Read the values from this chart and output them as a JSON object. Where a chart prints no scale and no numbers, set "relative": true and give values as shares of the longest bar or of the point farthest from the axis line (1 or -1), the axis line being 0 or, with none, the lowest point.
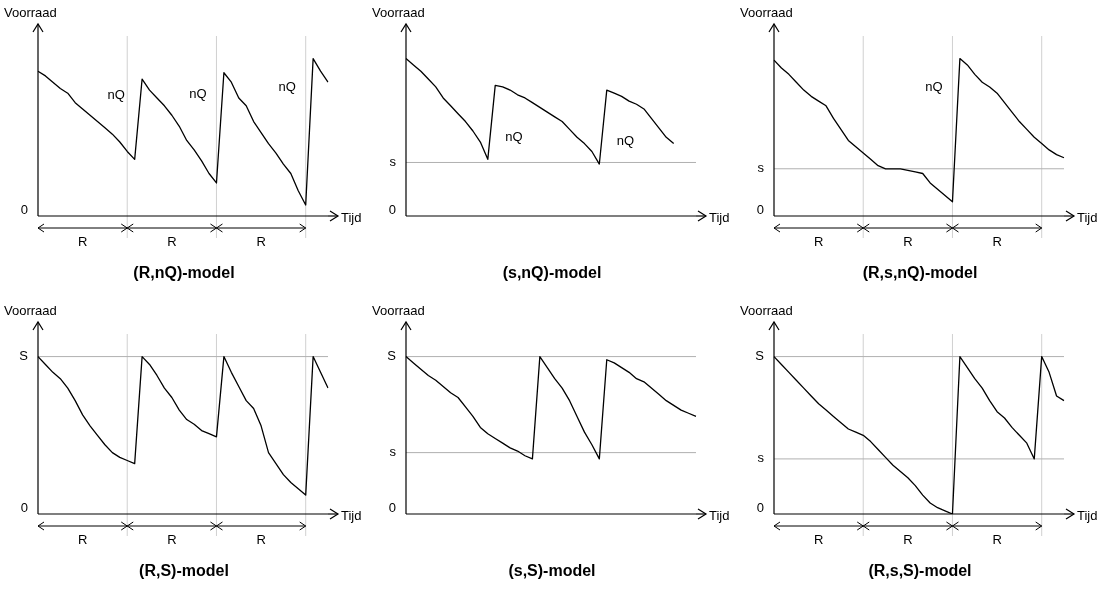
{
  "chart_data": [
    {
      "type": "line",
      "title": "(R,nQ)-model",
      "ylabel": "Voorraad",
      "xlabel": "Tijd",
      "relative": true,
      "marker": "none",
      "line_style": "solid",
      "grid": "x",
      "categories": [
        null,
        null,
        null,
        null,
        null,
        null,
        null,
        null,
        null,
        null,
        null,
        null,
        null,
        null,
        null,
        null,
        null,
        null,
        null,
        null,
        null,
        null,
        null,
        null,
        null,
        null,
        null,
        null,
        null,
        null,
        null,
        null,
        null,
        null,
        null,
        null,
        null,
        null,
        null,
        null
      ],
      "series": [
        {
          "color": "#000000",
          "values": [
            0.92,
            0.89,
            0.85,
            0.81,
            0.78,
            0.72,
            0.68,
            0.64,
            0.6,
            0.56,
            0.52,
            0.47,
            0.41,
            0.36,
            0.87,
            0.8,
            0.75,
            0.7,
            0.64,
            0.57,
            0.48,
            0.42,
            0.35,
            0.27,
            0.21,
            0.91,
            0.85,
            0.75,
            0.7,
            0.6,
            0.53,
            0.46,
            0.4,
            0.33,
            0.27,
            0.16,
            0.07,
            1.0,
            0.92,
            0.85
          ]
        }
      ],
      "ref_lines": [
        {
          "axis": "y",
          "value": 0,
          "label": "0",
          "color": "#000000"
        }
      ],
      "annotations": [
        "nQ",
        "nQ",
        "nQ",
        "R",
        "R",
        "R"
      ]
    },
    {
      "type": "line",
      "title": "(s,nQ)-model",
      "ylabel": "Voorraad",
      "xlabel": "Tijd",
      "relative": true,
      "marker": "none",
      "line_style": "solid",
      "categories": [
        null,
        null,
        null,
        null,
        null,
        null,
        null,
        null,
        null,
        null,
        null,
        null,
        null,
        null,
        null,
        null,
        null,
        null,
        null,
        null,
        null,
        null,
        null,
        null,
        null,
        null,
        null,
        null,
        null,
        null,
        null,
        null,
        null,
        null,
        null,
        null,
        null,
        null,
        null,
        null
      ],
      "series": [
        {
          "color": "#000000",
          "values": [
            1.0,
            0.96,
            0.92,
            0.87,
            0.82,
            0.75,
            0.7,
            0.65,
            0.6,
            0.54,
            0.47,
            0.36,
            0.83,
            0.82,
            0.8,
            0.77,
            0.75,
            0.72,
            0.69,
            0.66,
            0.63,
            0.6,
            0.55,
            0.5,
            0.46,
            0.41,
            0.33,
            0.8,
            0.78,
            0.76,
            0.73,
            0.71,
            0.68,
            0.62,
            0.56,
            0.5,
            0.46,
            null,
            null,
            null
          ]
        }
      ],
      "ref_lines": [
        {
          "axis": "y",
          "value": 0,
          "label": "0",
          "color": "#000000"
        },
        {
          "axis": "y",
          "value": 0.34,
          "label": "s",
          "color": "#b0b0b0"
        }
      ],
      "annotations": [
        "nQ",
        "nQ"
      ]
    },
    {
      "type": "line",
      "title": "(R,s,nQ)-model",
      "ylabel": "Voorraad",
      "xlabel": "Tijd",
      "relative": true,
      "marker": "none",
      "line_style": "solid",
      "grid": "x",
      "categories": [
        null,
        null,
        null,
        null,
        null,
        null,
        null,
        null,
        null,
        null,
        null,
        null,
        null,
        null,
        null,
        null,
        null,
        null,
        null,
        null,
        null,
        null,
        null,
        null,
        null,
        null,
        null,
        null,
        null,
        null,
        null,
        null,
        null,
        null,
        null,
        null,
        null,
        null,
        null,
        null
      ],
      "series": [
        {
          "color": "#000000",
          "values": [
            0.99,
            0.94,
            0.9,
            0.85,
            0.8,
            0.76,
            0.73,
            0.7,
            0.62,
            0.55,
            0.48,
            0.44,
            0.4,
            0.36,
            0.32,
            0.3,
            0.3,
            0.3,
            0.29,
            0.28,
            0.27,
            0.21,
            0.17,
            0.13,
            0.09,
            1.0,
            0.96,
            0.9,
            0.85,
            0.82,
            0.78,
            0.72,
            0.66,
            0.6,
            0.55,
            0.5,
            0.46,
            0.42,
            0.39,
            0.37
          ]
        }
      ],
      "ref_lines": [
        {
          "axis": "y",
          "value": 0,
          "label": "0",
          "color": "#000000"
        },
        {
          "axis": "y",
          "value": 0.3,
          "label": "s",
          "color": "#b0b0b0"
        }
      ],
      "annotations": [
        "nQ",
        "R",
        "R",
        "R"
      ]
    },
    {
      "type": "line",
      "title": "(R,S)-model",
      "ylabel": "Voorraad",
      "xlabel": "Tijd",
      "relative": true,
      "marker": "none",
      "line_style": "solid",
      "grid": "x",
      "categories": [
        null,
        null,
        null,
        null,
        null,
        null,
        null,
        null,
        null,
        null,
        null,
        null,
        null,
        null,
        null,
        null,
        null,
        null,
        null,
        null,
        null,
        null,
        null,
        null,
        null,
        null,
        null,
        null,
        null,
        null,
        null,
        null,
        null,
        null,
        null,
        null,
        null,
        null,
        null,
        null
      ],
      "series": [
        {
          "color": "#000000",
          "values": [
            1.0,
            0.95,
            0.9,
            0.86,
            0.8,
            0.72,
            0.63,
            0.56,
            0.5,
            0.44,
            0.39,
            0.36,
            0.34,
            0.32,
            1.0,
            0.95,
            0.88,
            0.8,
            0.74,
            0.66,
            0.6,
            0.57,
            0.53,
            0.51,
            0.49,
            1.0,
            0.9,
            0.81,
            0.72,
            0.67,
            0.56,
            0.39,
            0.32,
            0.25,
            0.2,
            0.16,
            0.12,
            1.0,
            0.9,
            0.8
          ]
        }
      ],
      "ref_lines": [
        {
          "axis": "y",
          "value": 0,
          "label": "0",
          "color": "#000000"
        },
        {
          "axis": "y",
          "value": 1,
          "label": "S",
          "color": "#b0b0b0"
        }
      ],
      "annotations": [
        "R",
        "R",
        "R"
      ]
    },
    {
      "type": "line",
      "title": "(s,S)-model",
      "ylabel": "Voorraad",
      "xlabel": "Tijd",
      "relative": true,
      "marker": "none",
      "line_style": "solid",
      "categories": [
        null,
        null,
        null,
        null,
        null,
        null,
        null,
        null,
        null,
        null,
        null,
        null,
        null,
        null,
        null,
        null,
        null,
        null,
        null,
        null,
        null,
        null,
        null,
        null,
        null,
        null,
        null,
        null,
        null,
        null,
        null,
        null,
        null,
        null,
        null,
        null,
        null,
        null,
        null,
        null
      ],
      "series": [
        {
          "color": "#000000",
          "values": [
            1.0,
            0.96,
            0.92,
            0.88,
            0.85,
            0.81,
            0.77,
            0.74,
            0.68,
            0.62,
            0.55,
            0.51,
            0.48,
            0.45,
            0.42,
            0.4,
            0.37,
            0.35,
            1.0,
            0.93,
            0.86,
            0.8,
            0.72,
            0.62,
            0.52,
            0.44,
            0.35,
            0.98,
            0.96,
            0.93,
            0.9,
            0.86,
            0.84,
            0.8,
            0.76,
            0.72,
            0.69,
            0.66,
            0.64,
            0.62
          ]
        }
      ],
      "ref_lines": [
        {
          "axis": "y",
          "value": 0,
          "label": "0",
          "color": "#000000"
        },
        {
          "axis": "y",
          "value": 1,
          "label": "S",
          "color": "#b0b0b0"
        },
        {
          "axis": "y",
          "value": 0.39,
          "label": "s",
          "color": "#b0b0b0"
        }
      ]
    },
    {
      "type": "line",
      "title": "(R,s,S)-model",
      "ylabel": "Voorraad",
      "xlabel": "Tijd",
      "relative": true,
      "marker": "none",
      "line_style": "solid",
      "grid": "x",
      "categories": [
        null,
        null,
        null,
        null,
        null,
        null,
        null,
        null,
        null,
        null,
        null,
        null,
        null,
        null,
        null,
        null,
        null,
        null,
        null,
        null,
        null,
        null,
        null,
        null,
        null,
        null,
        null,
        null,
        null,
        null,
        null,
        null,
        null,
        null,
        null,
        null,
        null,
        null,
        null,
        null
      ],
      "series": [
        {
          "color": "#000000",
          "values": [
            1.0,
            0.95,
            0.9,
            0.85,
            0.8,
            0.75,
            0.7,
            0.66,
            0.62,
            0.58,
            0.54,
            0.52,
            0.5,
            0.46,
            0.41,
            0.36,
            0.31,
            0.27,
            0.23,
            0.18,
            0.12,
            0.07,
            0.04,
            0.02,
            0.0,
            1.0,
            0.93,
            0.86,
            0.8,
            0.72,
            0.65,
            0.61,
            0.55,
            0.5,
            0.45,
            0.35,
            1.0,
            0.9,
            0.75,
            0.72
          ]
        }
      ],
      "ref_lines": [
        {
          "axis": "y",
          "value": 0,
          "label": "0",
          "color": "#000000"
        },
        {
          "axis": "y",
          "value": 1,
          "label": "S",
          "color": "#b0b0b0"
        },
        {
          "axis": "y",
          "value": 0.35,
          "label": "s",
          "color": "#b0b0b0"
        }
      ],
      "annotations": [
        "R",
        "R",
        "R"
      ]
    }
  ]
}
